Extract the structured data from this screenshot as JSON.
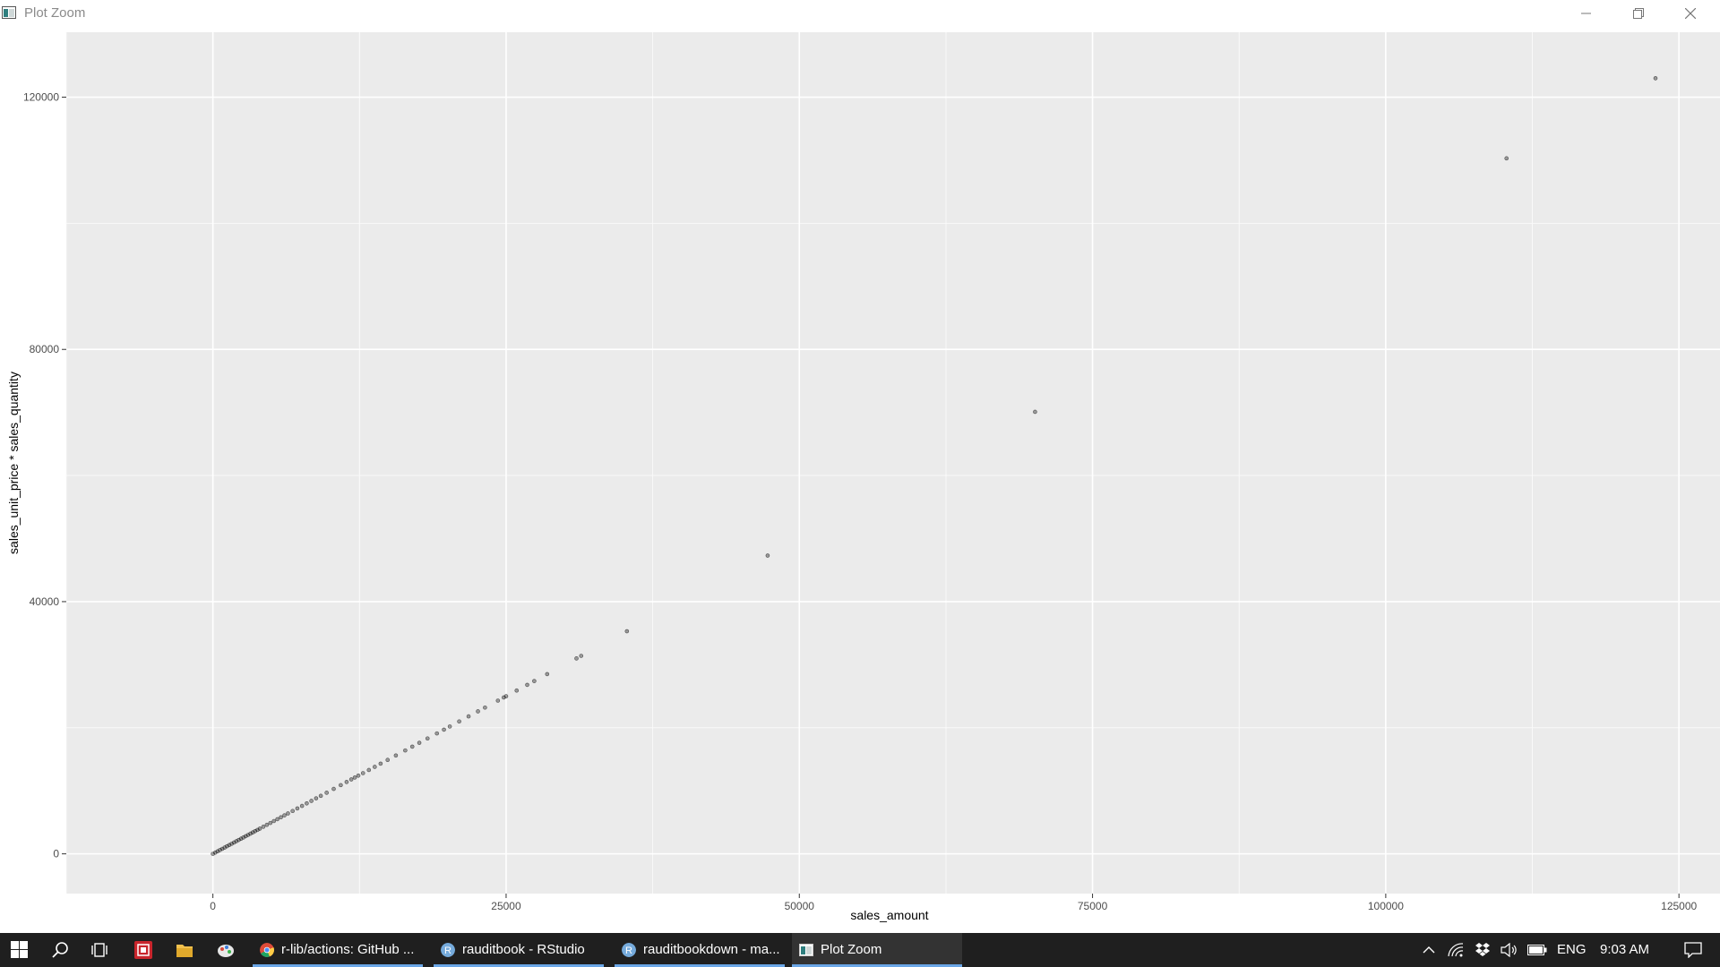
{
  "window": {
    "title": "Plot Zoom"
  },
  "chart_data": {
    "type": "scatter",
    "xlabel": "sales_amount",
    "ylabel": "sales_unit_price * sales_quantity",
    "xlim": [
      -12500,
      128500
    ],
    "ylim": [
      -6300,
      130300
    ],
    "xticks": [
      0,
      25000,
      50000,
      75000,
      100000,
      125000
    ],
    "xtick_labels": [
      "0",
      "25000",
      "50000",
      "75000",
      "100000",
      "125000"
    ],
    "yticks": [
      0,
      40000,
      80000,
      120000
    ],
    "ytick_labels": [
      "0",
      "40000",
      "80000",
      "120000"
    ],
    "grid": true,
    "panel_background": "#ebebeb",
    "point_color": "#000000",
    "points": [
      [
        0,
        0
      ],
      [
        200,
        200
      ],
      [
        400,
        400
      ],
      [
        600,
        600
      ],
      [
        800,
        800
      ],
      [
        1000,
        1000
      ],
      [
        1200,
        1200
      ],
      [
        1400,
        1400
      ],
      [
        1600,
        1600
      ],
      [
        1800,
        1800
      ],
      [
        2000,
        2000
      ],
      [
        2200,
        2200
      ],
      [
        2400,
        2400
      ],
      [
        2600,
        2600
      ],
      [
        2800,
        2800
      ],
      [
        3000,
        3000
      ],
      [
        3200,
        3200
      ],
      [
        3400,
        3400
      ],
      [
        3600,
        3600
      ],
      [
        3800,
        3800
      ],
      [
        4000,
        4000
      ],
      [
        4300,
        4300
      ],
      [
        4600,
        4600
      ],
      [
        4900,
        4900
      ],
      [
        5200,
        5200
      ],
      [
        5500,
        5500
      ],
      [
        5800,
        5800
      ],
      [
        6100,
        6100
      ],
      [
        6400,
        6400
      ],
      [
        6800,
        6800
      ],
      [
        7200,
        7200
      ],
      [
        7600,
        7600
      ],
      [
        8000,
        8000
      ],
      [
        8400,
        8400
      ],
      [
        8800,
        8800
      ],
      [
        9200,
        9200
      ],
      [
        9700,
        9700
      ],
      [
        10300,
        10300
      ],
      [
        10900,
        10900
      ],
      [
        11400,
        11400
      ],
      [
        11800,
        11800
      ],
      [
        12100,
        12100
      ],
      [
        12400,
        12400
      ],
      [
        12800,
        12800
      ],
      [
        13300,
        13300
      ],
      [
        13800,
        13800
      ],
      [
        14300,
        14300
      ],
      [
        14900,
        14900
      ],
      [
        15600,
        15600
      ],
      [
        16400,
        16400
      ],
      [
        17000,
        17000
      ],
      [
        17600,
        17600
      ],
      [
        18300,
        18300
      ],
      [
        19100,
        19100
      ],
      [
        19700,
        19700
      ],
      [
        20200,
        20200
      ],
      [
        21000,
        21000
      ],
      [
        21800,
        21800
      ],
      [
        22600,
        22600
      ],
      [
        23200,
        23200
      ],
      [
        24300,
        24300
      ],
      [
        24800,
        24800
      ],
      [
        25000,
        25000
      ],
      [
        25900,
        25900
      ],
      [
        26800,
        26800
      ],
      [
        27400,
        27400
      ],
      [
        28500,
        28500
      ],
      [
        31000,
        31000
      ],
      [
        31400,
        31400
      ],
      [
        35300,
        35300
      ],
      [
        47300,
        47300
      ],
      [
        70100,
        70100
      ],
      [
        110300,
        110300
      ],
      [
        123000,
        123000
      ]
    ]
  },
  "taskbar": {
    "apps": [
      {
        "label": "r-lib/actions: GitHub ...",
        "icon": "chrome-icon"
      },
      {
        "label": "rauditbook - RStudio",
        "icon": "rstudio-icon"
      },
      {
        "label": "rauditbookdown - ma...",
        "icon": "rstudio-icon"
      },
      {
        "label": "Plot Zoom",
        "icon": "plot-zoom-icon"
      }
    ],
    "tray": {
      "language": "ENG",
      "time": "9:03 AM"
    }
  }
}
